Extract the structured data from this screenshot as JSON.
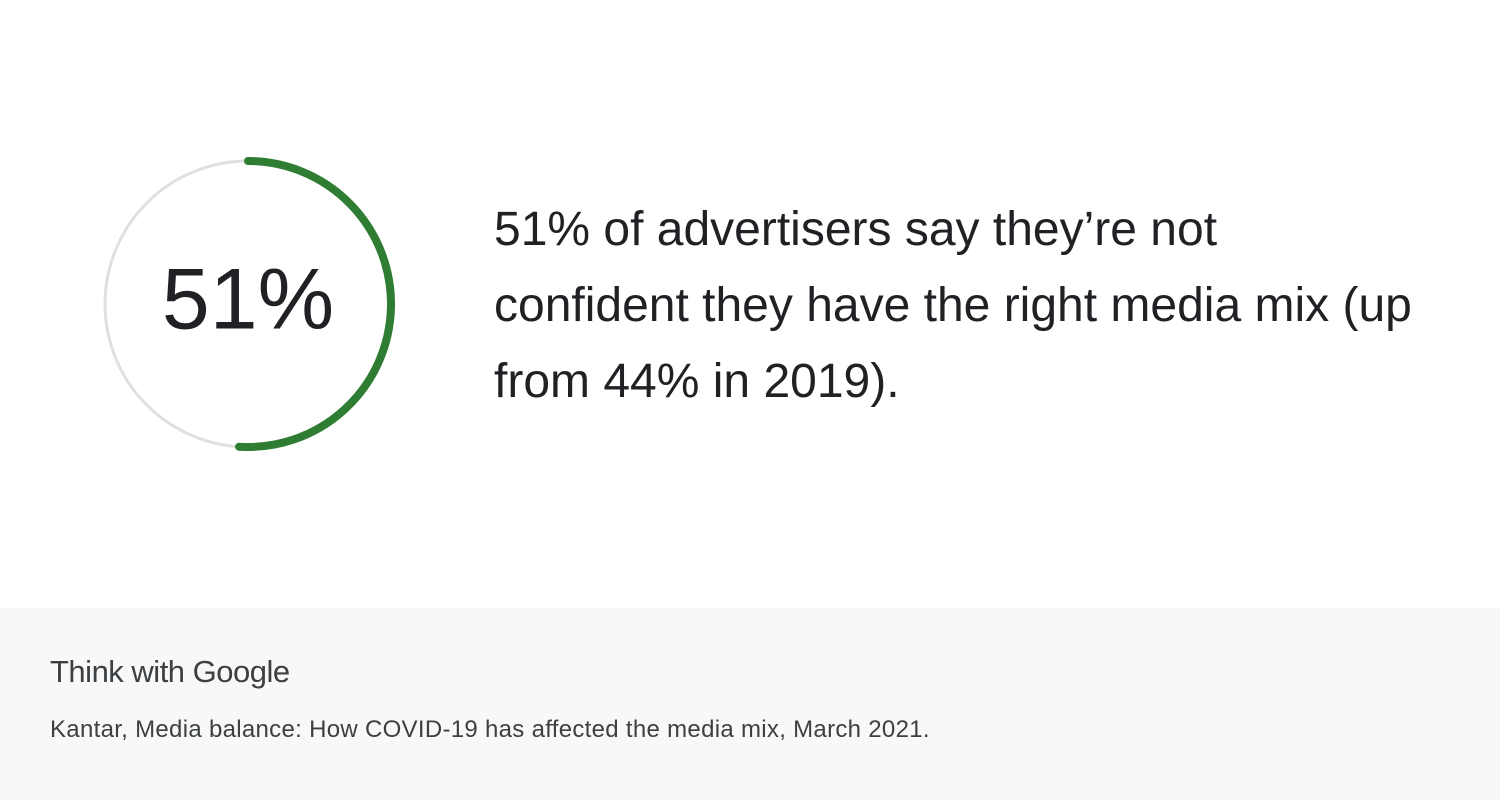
{
  "chart_data": {
    "type": "gauge",
    "values": [
      51
    ],
    "value_labels": [
      "51%"
    ],
    "ylim": [
      0,
      100
    ],
    "color": "#2e7d32",
    "track_color": "#e0e0e0"
  },
  "statement": "51% of advertisers say they’re not confident they have the right media mix (up from 44% in 2019).",
  "footer": {
    "brand": "Think with Google",
    "source": "Kantar, Media balance: How COVID-19 has affected the media mix, March 2021."
  }
}
